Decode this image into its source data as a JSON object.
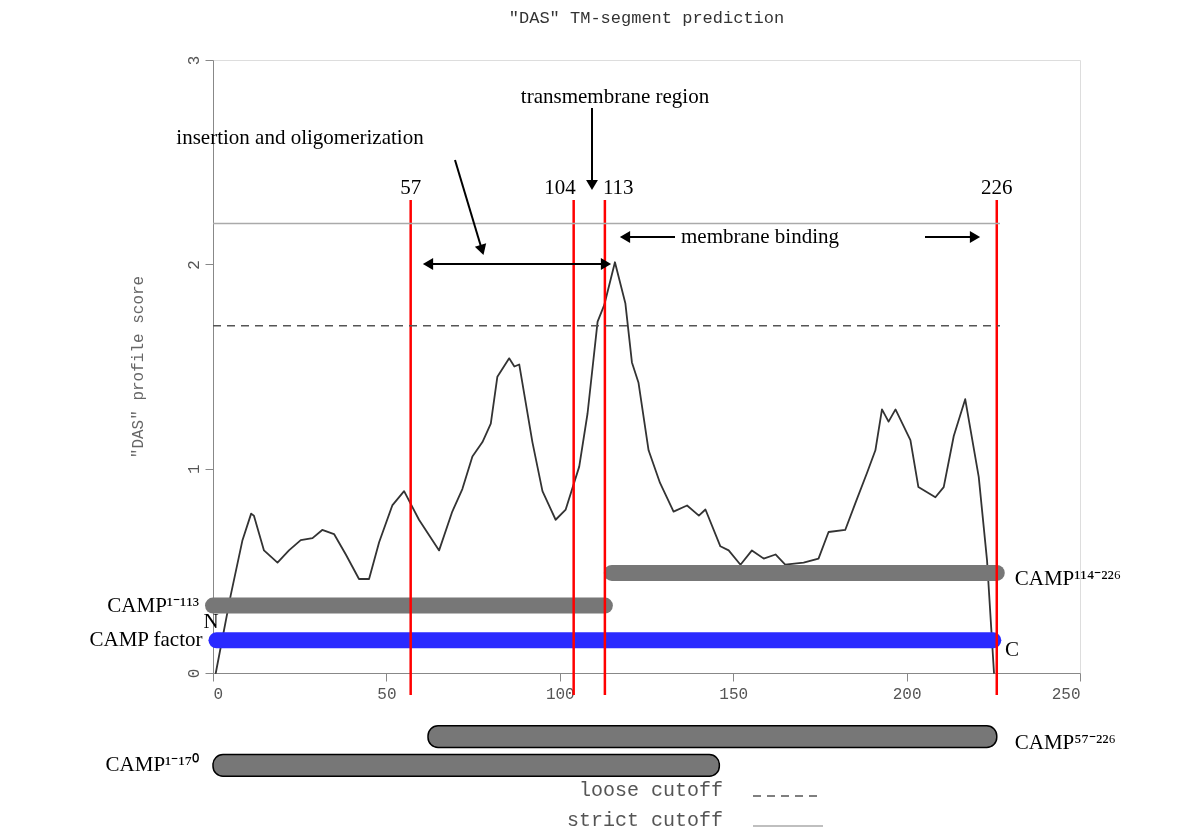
{
  "chart_data": [
    {
      "type": "line",
      "title": "\"DAS\" TM-segment prediction",
      "ylabel": "\"DAS\" profile score",
      "xlim": [
        0,
        250
      ],
      "xticks": [
        0,
        50,
        100,
        150,
        200,
        250
      ],
      "ylim": [
        0,
        3
      ],
      "yticks": [
        0,
        1,
        2,
        3
      ],
      "grid": false,
      "legend": "bottom",
      "series": [
        {
          "color": "#333333",
          "x": [
            0.8,
            5.1,
            8.5,
            11,
            11.8,
            14.7,
            18.6,
            21.9,
            25.3,
            28.7,
            31.5,
            34.9,
            38.3,
            42.1,
            45,
            47.9,
            51.7,
            55.1,
            59.4,
            65.2,
            69,
            71.9,
            74.8,
            77.7,
            80.1,
            82,
            85.4,
            86.9,
            88.3,
            92.1,
            95,
            98.8,
            101.7,
            105.6,
            108,
            110.9,
            112.8,
            115.9,
            118.9,
            120.8,
            122.7,
            125.6,
            128.9,
            132.8,
            136.7,
            140.1,
            142,
            146.3,
            148.7,
            152.1,
            155.4,
            158.8,
            162.2,
            165,
            170.3,
            174.6,
            177.5,
            182.3,
            185.2,
            188.6,
            191,
            192.9,
            194.8,
            196.8,
            201.1,
            203.4,
            208.3,
            210.7,
            213.6,
            216.9,
            220.8,
            223.2,
            225.2
          ],
          "values": [
            0,
            0.38,
            0.65,
            0.78,
            0.77,
            0.6,
            0.54,
            0.6,
            0.65,
            0.66,
            0.7,
            0.68,
            0.58,
            0.46,
            0.46,
            0.64,
            0.82,
            0.89,
            0.75,
            0.6,
            0.79,
            0.9,
            1.06,
            1.13,
            1.22,
            1.45,
            1.54,
            1.5,
            1.51,
            1.13,
            0.89,
            0.75,
            0.8,
            1.01,
            1.27,
            1.72,
            1.8,
            2.01,
            1.81,
            1.52,
            1.42,
            1.09,
            0.93,
            0.79,
            0.82,
            0.77,
            0.8,
            0.62,
            0.6,
            0.53,
            0.6,
            0.56,
            0.58,
            0.53,
            0.54,
            0.56,
            0.69,
            0.7,
            0.83,
            0.98,
            1.09,
            1.29,
            1.23,
            1.29,
            1.14,
            0.91,
            0.86,
            0.91,
            1.16,
            1.34,
            0.96,
            0.55,
            0
          ]
        },
        {
          "name": "CAMP factor",
          "color": "#2a2aff",
          "x": [
            1,
            225
          ],
          "values": [
            0.16,
            0.16
          ]
        },
        {
          "name": "CAMP¹⁻¹¹³",
          "color": "#777777",
          "x": [
            0,
            113
          ],
          "values": [
            0.33,
            0.33
          ]
        },
        {
          "name": "CAMP¹¹⁴⁻²²⁶",
          "color": "#777777",
          "x": [
            115,
            226
          ],
          "values": [
            0.49,
            0.49
          ]
        }
      ],
      "ref_lines": [
        {
          "axis": "x",
          "value": 57,
          "label": "57",
          "color": "#ff0000"
        },
        {
          "axis": "x",
          "value": 104,
          "label": "104",
          "color": "#ff0000"
        },
        {
          "axis": "x",
          "value": 113,
          "label": "113",
          "color": "#ff0000"
        },
        {
          "axis": "x",
          "value": 226,
          "label": "226",
          "color": "#ff0000"
        },
        {
          "axis": "y",
          "value": 1.7,
          "label": "loose cutoff",
          "color": "#555555",
          "line_style": "dashed"
        },
        {
          "axis": "y",
          "value": 2.2,
          "label": "strict cutoff",
          "color": "#aaaaaa",
          "line_style": "solid"
        }
      ],
      "annotations": [
        "insertion and oligomerization",
        "transmembrane region",
        "membrane binding",
        "N",
        "C"
      ]
    },
    {
      "type": "bar",
      "orientation": "horizontal",
      "categories": [
        "CAMP⁵⁷⁻²²⁶",
        "CAMP¹⁻¹⁷⁰"
      ],
      "base": [
        62,
        0
      ],
      "values": [
        164,
        146
      ],
      "color": "#777777",
      "xlim": [
        0,
        250
      ],
      "tick_labels": false
    }
  ]
}
